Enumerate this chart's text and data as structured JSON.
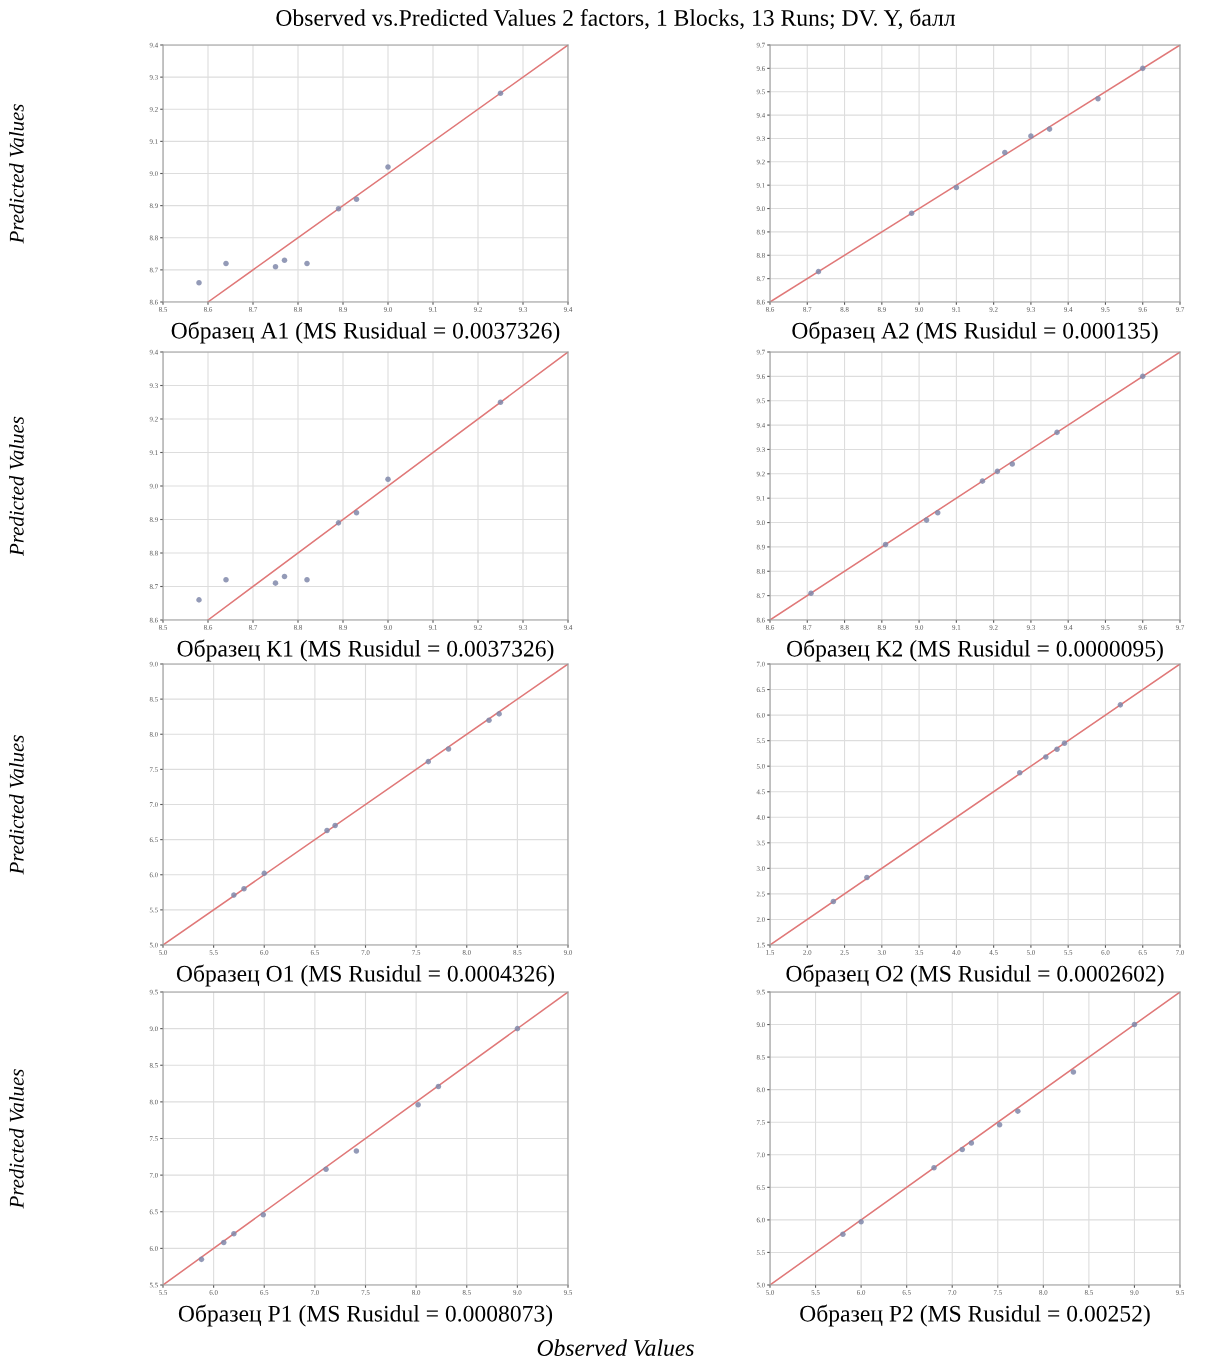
{
  "chart_data": [
    {
      "type": "scatter",
      "title": "Observed vs.Predicted Values 2 factors, 1 Blocks, 13 Runs; DV. Y, балл",
      "xlabel": "Образец А1 (MS Rusidual = 0.0037326)",
      "ylabel": "Predicted Values",
      "grid": true,
      "xlim": [
        8.5,
        9.4
      ],
      "xticks": [
        8.5,
        8.6,
        8.7,
        8.8,
        8.9,
        {
          "value": 9,
          "label": "9.0"
        },
        9.1,
        9.2,
        9.3,
        9.4
      ],
      "ylim": [
        8.6,
        9.4
      ],
      "yticks": [
        8.6,
        8.7,
        8.8,
        8.9,
        {
          "value": 9,
          "label": "9.0"
        },
        9.1,
        9.2,
        9.3,
        9.4
      ],
      "series": [
        {
          "marker": "circle",
          "color": "#8088aa",
          "x": [
            8.58,
            8.64,
            8.75,
            8.77,
            8.82,
            8.89,
            8.93,
            9.0,
            9.25
          ],
          "values": [
            8.66,
            8.72,
            8.71,
            8.73,
            8.72,
            8.89,
            8.92,
            9.02,
            9.25
          ]
        },
        {
          "type": "line",
          "color": "#e07878",
          "x": [
            8.6,
            9.4
          ],
          "values": [
            8.6,
            9.4
          ]
        }
      ]
    },
    {
      "type": "scatter",
      "xlabel": "Образец А2 (MS Rusidul = 0.000135)",
      "grid": true,
      "xlim": [
        8.6,
        9.7
      ],
      "xticks": [
        8.6,
        8.7,
        8.8,
        8.9,
        {
          "value": 9,
          "label": "9.0"
        },
        9.1,
        9.2,
        9.3,
        9.4,
        9.5,
        9.6,
        9.7
      ],
      "ylim": [
        8.6,
        9.7
      ],
      "yticks": [
        8.6,
        8.7,
        8.8,
        8.9,
        {
          "value": 9,
          "label": "9.0"
        },
        9.1,
        9.2,
        9.3,
        9.4,
        9.5,
        9.6,
        9.7
      ],
      "series": [
        {
          "marker": "circle",
          "color": "#8088aa",
          "x": [
            8.73,
            8.98,
            9.1,
            9.23,
            9.3,
            9.35,
            9.48,
            9.6
          ],
          "values": [
            8.73,
            8.98,
            9.09,
            9.24,
            9.31,
            9.34,
            9.47,
            9.6
          ]
        },
        {
          "type": "line",
          "color": "#e07878",
          "x": [
            8.6,
            9.7
          ],
          "values": [
            8.6,
            9.7
          ]
        }
      ]
    },
    {
      "type": "scatter",
      "xlabel": "Образец К1 (MS Rusidul = 0.0037326)",
      "ylabel": "Predicted Values",
      "grid": true,
      "xlim": [
        8.5,
        9.4
      ],
      "xticks": [
        8.5,
        8.6,
        8.7,
        8.8,
        8.9,
        {
          "value": 9,
          "label": "9.0"
        },
        9.1,
        9.2,
        9.3,
        9.4
      ],
      "ylim": [
        8.6,
        9.4
      ],
      "yticks": [
        8.6,
        8.7,
        8.8,
        8.9,
        {
          "value": 9,
          "label": "9.0"
        },
        9.1,
        9.2,
        9.3,
        9.4
      ],
      "series": [
        {
          "marker": "circle",
          "color": "#8088aa",
          "x": [
            8.58,
            8.64,
            8.75,
            8.77,
            8.82,
            8.89,
            8.93,
            9.0,
            9.25
          ],
          "values": [
            8.66,
            8.72,
            8.71,
            8.73,
            8.72,
            8.89,
            8.92,
            9.02,
            9.25
          ]
        },
        {
          "type": "line",
          "color": "#e07878",
          "x": [
            8.6,
            9.4
          ],
          "values": [
            8.6,
            9.4
          ]
        }
      ]
    },
    {
      "type": "scatter",
      "xlabel": "Образец К2 (MS Rusidul = 0.0000095)",
      "grid": true,
      "xlim": [
        8.6,
        9.7
      ],
      "xticks": [
        8.6,
        8.7,
        8.8,
        8.9,
        {
          "value": 9,
          "label": "9.0"
        },
        9.1,
        9.2,
        9.3,
        9.4,
        9.5,
        9.6,
        9.7
      ],
      "ylim": [
        8.6,
        9.7
      ],
      "yticks": [
        8.6,
        8.7,
        8.8,
        8.9,
        {
          "value": 9,
          "label": "9.0"
        },
        9.1,
        9.2,
        9.3,
        9.4,
        9.5,
        9.6,
        9.7
      ],
      "series": [
        {
          "marker": "circle",
          "color": "#8088aa",
          "x": [
            8.71,
            8.91,
            9.02,
            9.05,
            9.17,
            9.21,
            9.25,
            9.37,
            9.6
          ],
          "values": [
            8.71,
            8.91,
            9.01,
            9.04,
            9.17,
            9.21,
            9.24,
            9.37,
            9.6
          ]
        },
        {
          "type": "line",
          "color": "#e07878",
          "x": [
            8.6,
            9.7
          ],
          "values": [
            8.6,
            9.7
          ]
        }
      ]
    },
    {
      "type": "scatter",
      "xlabel": "Образец О1 (MS Rusidul = 0.0004326)",
      "ylabel": "Predicted Values",
      "grid": true,
      "xlim": [
        5,
        9
      ],
      "xticks": [
        {
          "value": 5,
          "label": "5.0"
        },
        5.5,
        {
          "value": 6,
          "label": "6.0"
        },
        6.5,
        {
          "value": 7,
          "label": "7.0"
        },
        7.5,
        {
          "value": 8,
          "label": "8.0"
        },
        8.5,
        {
          "value": 9,
          "label": "9.0"
        }
      ],
      "ylim": [
        5,
        9
      ],
      "yticks": [
        {
          "value": 5,
          "label": "5.0"
        },
        5.5,
        {
          "value": 6,
          "label": "6.0"
        },
        6.5,
        {
          "value": 7,
          "label": "7.0"
        },
        7.5,
        {
          "value": 8,
          "label": "8.0"
        },
        8.5,
        {
          "value": 9,
          "label": "9.0"
        }
      ],
      "series": [
        {
          "marker": "circle",
          "color": "#8088aa",
          "x": [
            5.7,
            5.8,
            6.0,
            6.62,
            6.7,
            7.62,
            7.82,
            8.22,
            8.32
          ],
          "values": [
            5.71,
            5.8,
            6.02,
            6.63,
            6.7,
            7.61,
            7.79,
            8.2,
            8.29
          ]
        },
        {
          "type": "line",
          "color": "#e07878",
          "x": [
            5,
            9
          ],
          "values": [
            5,
            9
          ]
        }
      ]
    },
    {
      "type": "scatter",
      "xlabel": "Образец О2 (MS Rusidul = 0.0002602)",
      "grid": true,
      "xlim": [
        1.5,
        7
      ],
      "xticks": [
        1.5,
        {
          "value": 2,
          "label": "2.0"
        },
        2.5,
        {
          "value": 3,
          "label": "3.0"
        },
        3.5,
        {
          "value": 4,
          "label": "4.0"
        },
        4.5,
        {
          "value": 5,
          "label": "5.0"
        },
        5.5,
        {
          "value": 6,
          "label": "6.0"
        },
        6.5,
        {
          "value": 7,
          "label": "7.0"
        }
      ],
      "ylim": [
        1.5,
        7
      ],
      "yticks": [
        1.5,
        {
          "value": 2,
          "label": "2.0"
        },
        2.5,
        {
          "value": 3,
          "label": "3.0"
        },
        3.5,
        {
          "value": 4,
          "label": "4.0"
        },
        4.5,
        {
          "value": 5,
          "label": "5.0"
        },
        5.5,
        {
          "value": 6,
          "label": "6.0"
        },
        6.5,
        {
          "value": 7,
          "label": "7.0"
        }
      ],
      "series": [
        {
          "marker": "circle",
          "color": "#8088aa",
          "x": [
            2.35,
            2.8,
            4.85,
            5.2,
            5.35,
            5.45,
            6.2
          ],
          "values": [
            2.35,
            2.82,
            4.87,
            5.18,
            5.33,
            5.45,
            6.2
          ]
        },
        {
          "type": "line",
          "color": "#e07878",
          "x": [
            1.5,
            7
          ],
          "values": [
            1.5,
            7
          ]
        }
      ]
    },
    {
      "type": "scatter",
      "xlabel": "Образец Р1 (MS Rusidul = 0.0008073)",
      "ylabel": "Predicted Values",
      "grid": true,
      "xlim": [
        5.5,
        9.5
      ],
      "xticks": [
        5.5,
        {
          "value": 6,
          "label": "6.0"
        },
        6.5,
        {
          "value": 7,
          "label": "7.0"
        },
        7.5,
        {
          "value": 8,
          "label": "8.0"
        },
        8.5,
        {
          "value": 9,
          "label": "9.0"
        },
        9.5
      ],
      "ylim": [
        5.5,
        9.5
      ],
      "yticks": [
        5.5,
        {
          "value": 6,
          "label": "6.0"
        },
        6.5,
        {
          "value": 7,
          "label": "7.0"
        },
        7.5,
        {
          "value": 8,
          "label": "8.0"
        },
        8.5,
        {
          "value": 9,
          "label": "9.0"
        },
        9.5
      ],
      "series": [
        {
          "marker": "circle",
          "color": "#8088aa",
          "x": [
            5.88,
            6.1,
            6.2,
            6.49,
            7.11,
            7.41,
            8.02,
            8.22,
            9.0
          ],
          "values": [
            5.85,
            6.08,
            6.2,
            6.46,
            7.08,
            7.33,
            7.96,
            8.21,
            9.0
          ]
        },
        {
          "type": "line",
          "color": "#e07878",
          "x": [
            5.5,
            9.5
          ],
          "values": [
            5.5,
            9.5
          ]
        }
      ]
    },
    {
      "type": "scatter",
      "xlabel": "Образец Р2 (MS Rusidul = 0.00252)",
      "grid": true,
      "annotations": [
        "Observed Values"
      ],
      "xlim": [
        5,
        9.5
      ],
      "xticks": [
        {
          "value": 5,
          "label": "5.0"
        },
        5.5,
        {
          "value": 6,
          "label": "6.0"
        },
        6.5,
        {
          "value": 7,
          "label": "7.0"
        },
        7.5,
        {
          "value": 8,
          "label": "8.0"
        },
        8.5,
        {
          "value": 9,
          "label": "9.0"
        },
        9.5
      ],
      "ylim": [
        5,
        9.5
      ],
      "yticks": [
        {
          "value": 5,
          "label": "5.0"
        },
        5.5,
        {
          "value": 6,
          "label": "6.0"
        },
        6.5,
        {
          "value": 7,
          "label": "7.0"
        },
        7.5,
        {
          "value": 8,
          "label": "8.0"
        },
        8.5,
        {
          "value": 9,
          "label": "9.0"
        },
        9.5
      ],
      "series": [
        {
          "marker": "circle",
          "color": "#8088aa",
          "x": [
            5.8,
            6.0,
            6.8,
            7.11,
            7.21,
            7.52,
            7.72,
            8.33,
            9.0
          ],
          "values": [
            5.78,
            5.97,
            6.8,
            7.08,
            7.18,
            7.46,
            7.67,
            8.27,
            9.0
          ]
        },
        {
          "type": "line",
          "color": "#e07878",
          "x": [
            5,
            9.5
          ],
          "values": [
            5,
            9.5
          ]
        }
      ]
    }
  ]
}
